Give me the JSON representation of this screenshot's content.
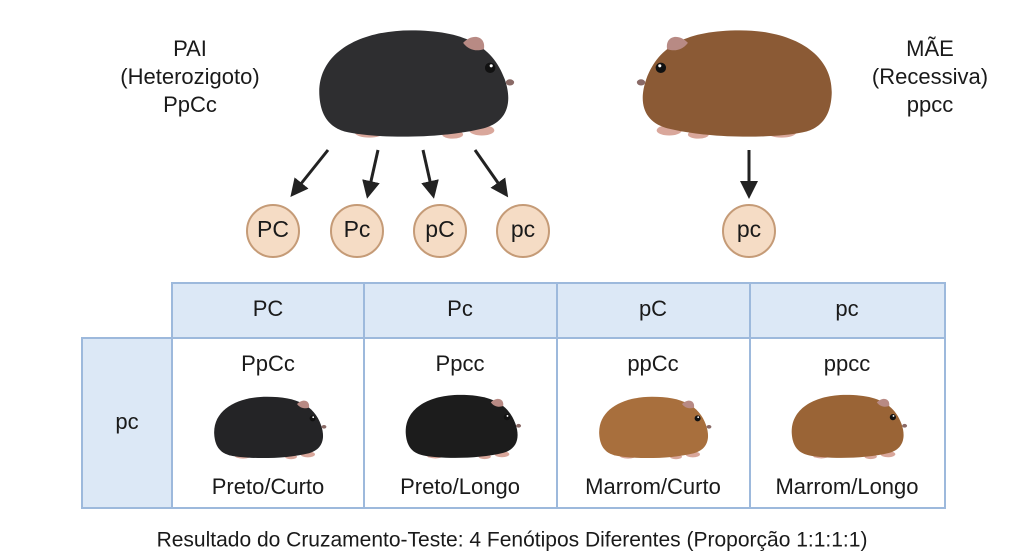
{
  "father": {
    "label": "PAI",
    "type": "(Heterozigoto)",
    "genotype": "PpCc"
  },
  "mother": {
    "label": "MÃE",
    "type": "(Recessiva)",
    "genotype": "ppcc"
  },
  "father_gametes": [
    "PC",
    "Pc",
    "pC",
    "pc"
  ],
  "mother_gametes": [
    "pc"
  ],
  "table": {
    "columns": [
      "PC",
      "Pc",
      "pC",
      "pc"
    ],
    "rows": [
      {
        "header": "pc",
        "cells": [
          {
            "genotype": "PpCc",
            "phenotype": "Preto/Curto"
          },
          {
            "genotype": "Ppcc",
            "phenotype": "Preto/Longo"
          },
          {
            "genotype": "ppCc",
            "phenotype": "Marrom/Curto"
          },
          {
            "genotype": "ppcc",
            "phenotype": "Marrom/Longo"
          }
        ]
      }
    ]
  },
  "caption": "Resultado do Cruzamento-Teste: 4 Fenótipos Diferentes (Proporção 1:1:1:1)"
}
